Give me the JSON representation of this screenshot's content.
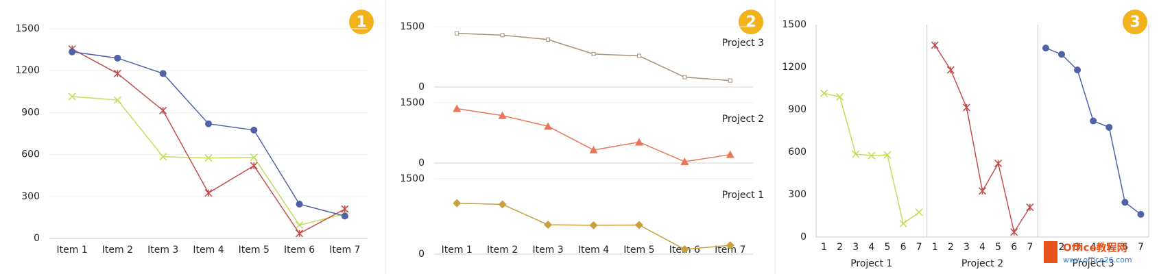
{
  "chart_data": [
    {
      "type": "line",
      "badge": "1",
      "categories": [
        "Item 1",
        "Item 2",
        "Item 3",
        "Item 4",
        "Item 5",
        "Item 6",
        "Item 7"
      ],
      "series": [
        {
          "color": "#c6db5a",
          "marker": "x",
          "values": [
            1015,
            990,
            585,
            575,
            580,
            95,
            175
          ]
        },
        {
          "color": "#c0504d",
          "marker": "star",
          "values": [
            1355,
            1180,
            915,
            325,
            520,
            35,
            210
          ]
        },
        {
          "color": "#4f62a8",
          "marker": "circle",
          "values": [
            1335,
            1290,
            1180,
            820,
            775,
            245,
            160
          ]
        }
      ],
      "ylim": [
        0,
        1500
      ],
      "yticks": [
        0,
        300,
        600,
        900,
        1200,
        1500
      ],
      "grid": true
    },
    {
      "type": "line",
      "badge": "2",
      "panels": true,
      "categories": [
        "Item 1",
        "Item 2",
        "Item 3",
        "Item 4",
        "Item 5",
        "Item 6",
        "Item 7"
      ],
      "series": [
        {
          "name": "Project 1",
          "color": "#c9a040",
          "marker": "diamond",
          "values": [
            1015,
            990,
            585,
            575,
            580,
            95,
            175
          ]
        },
        {
          "name": "Project 2",
          "color": "#e8765a",
          "marker": "triangle",
          "values": [
            1355,
            1180,
            915,
            325,
            520,
            35,
            210
          ]
        },
        {
          "name": "Project 3",
          "color": "#a89276",
          "marker": "square",
          "values": [
            1335,
            1290,
            1180,
            820,
            775,
            245,
            160
          ]
        }
      ],
      "ylim": [
        0,
        1500
      ],
      "yticks": [
        0,
        1500
      ],
      "grid": true
    },
    {
      "type": "line",
      "badge": "3",
      "groups": true,
      "categories": [
        "1",
        "2",
        "3",
        "4",
        "5",
        "6",
        "7"
      ],
      "series": [
        {
          "name": "Project 1",
          "color": "#c6db5a",
          "marker": "x",
          "values": [
            1015,
            990,
            585,
            575,
            580,
            95,
            175
          ]
        },
        {
          "name": "Project 2",
          "color": "#c0504d",
          "marker": "star",
          "values": [
            1355,
            1180,
            915,
            325,
            520,
            35,
            210
          ]
        },
        {
          "name": "Project 3",
          "color": "#4f62a8",
          "marker": "circle",
          "values": [
            1335,
            1290,
            1180,
            820,
            775,
            245,
            160
          ]
        }
      ],
      "ylim": [
        0,
        1500
      ],
      "yticks": [
        0,
        300,
        600,
        900,
        1200,
        1500
      ],
      "grid": false
    }
  ],
  "watermark": {
    "text": "Office教程网",
    "url": "www.office26.com"
  }
}
